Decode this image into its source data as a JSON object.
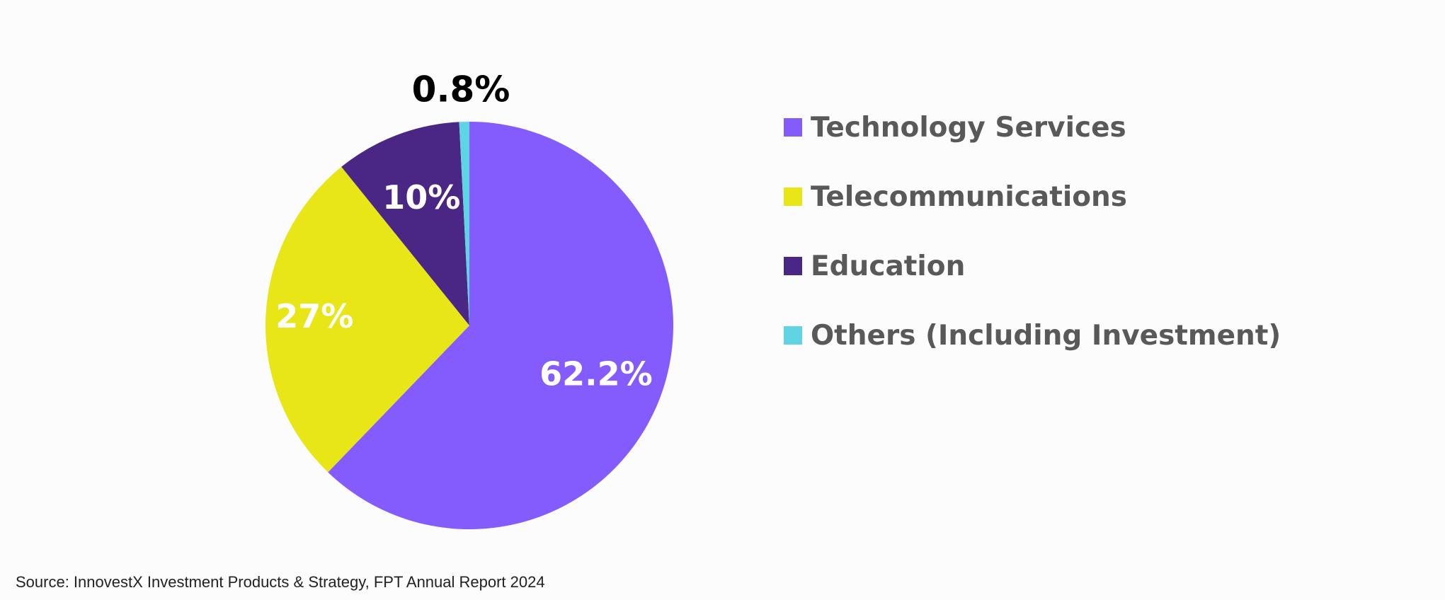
{
  "chart_data": {
    "type": "pie",
    "title": "",
    "categories": [
      "Technology Services",
      "Telecommunications",
      "Education",
      "Others (Including Investment)"
    ],
    "values": [
      62.2,
      27,
      10,
      0.8
    ],
    "data_labels": [
      "62.2%",
      "27%",
      "10%",
      "0.8%"
    ],
    "colors": [
      "#845cfd",
      "#e8e616",
      "#4a2785",
      "#5fd4e3"
    ],
    "legend_position": "right"
  },
  "source": "Source: InnovestX Investment Products & Strategy, FPT Annual Report 2024"
}
